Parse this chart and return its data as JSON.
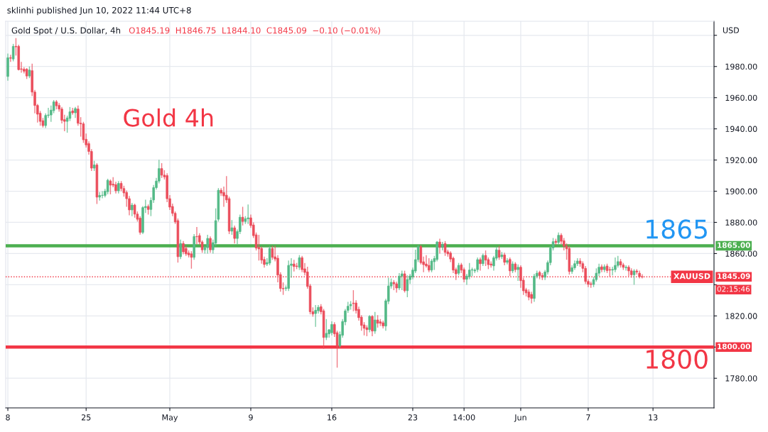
{
  "chart_data": {
    "type": "candlestick",
    "title": "Gold Spot / U.S. Dollar, 4h",
    "subtitle": "O1845.19  H1846.75  L1844.10  C1845.09  −0.10 (−0.01%)",
    "ylabel": "USD",
    "categories": [
      "8",
      null,
      null,
      null,
      null,
      null,
      null,
      null,
      null,
      null,
      null,
      null,
      null,
      null,
      null,
      null,
      null,
      null,
      null,
      null,
      null,
      null,
      null,
      null,
      null,
      null,
      null,
      null,
      null,
      "25",
      null,
      null,
      null,
      null,
      null,
      null,
      null,
      null,
      null,
      null,
      null,
      null,
      null,
      null,
      null,
      null,
      null,
      null,
      null,
      null,
      null,
      null,
      null,
      null,
      null,
      null,
      null,
      null,
      null,
      null,
      "May",
      null,
      null,
      null,
      null,
      null,
      null,
      null,
      null,
      null,
      null,
      null,
      null,
      null,
      null,
      null,
      null,
      null,
      null,
      null,
      null,
      null,
      null,
      null,
      null,
      null,
      null,
      null,
      null,
      null,
      "9",
      null,
      null,
      null,
      null,
      null,
      null,
      null,
      null,
      null,
      null,
      null,
      null,
      null,
      null,
      null,
      null,
      null,
      null,
      null,
      null,
      null,
      null,
      null,
      null,
      null,
      null,
      null,
      null,
      null,
      "16",
      null,
      null,
      null,
      null,
      null,
      null,
      null,
      null,
      null,
      null,
      null,
      null,
      null,
      null,
      null,
      null,
      null,
      null,
      null,
      null,
      null,
      null,
      null,
      null,
      null,
      null,
      null,
      null,
      null,
      "23",
      null,
      null,
      null,
      null,
      null,
      null,
      null,
      null,
      null,
      null,
      null,
      null,
      null,
      null,
      null,
      null,
      null,
      null,
      "14:00",
      null,
      null,
      null,
      null,
      null,
      null,
      null,
      null,
      null,
      null,
      null,
      null,
      null,
      null,
      null,
      null,
      null,
      null,
      null,
      null,
      "Jun",
      null,
      null,
      null,
      null,
      null,
      null,
      null,
      null,
      null,
      null,
      null,
      null,
      null,
      null,
      null,
      null,
      null,
      null,
      null,
      null,
      null,
      null,
      null,
      null,
      "7",
      null,
      null,
      null,
      null,
      null,
      null,
      null,
      null,
      null,
      null,
      null,
      null,
      null,
      null,
      null,
      null,
      null,
      null,
      null,
      null,
      null,
      null,
      null,
      "13",
      null,
      null,
      null,
      null,
      null,
      null,
      null,
      null,
      null,
      null,
      null,
      null,
      null,
      null,
      null,
      null,
      null,
      null,
      null,
      null,
      null,
      null
    ],
    "ohlc": [
      [
        1973.6,
        1988.3,
        1970.9,
        1985.6
      ],
      [
        1985.6,
        1987.5,
        1983.0,
        1985.3
      ],
      [
        1984.8,
        1994.5,
        1983.3,
        1992.9
      ],
      [
        1992.9,
        1998.2,
        1987.0,
        1992.6
      ],
      [
        1992.9,
        1994.0,
        1977.5,
        1978.0
      ],
      [
        1978.5,
        1983.0,
        1976.0,
        1978.2
      ],
      [
        1978.2,
        1979.5,
        1975.5,
        1977.0
      ],
      [
        1978.2,
        1979.0,
        1972.0,
        1973.9
      ],
      [
        1973.9,
        1980.0,
        1972.5,
        1977.7
      ],
      [
        1977.3,
        1981.8,
        1961.0,
        1963.6
      ],
      [
        1963.6,
        1965.0,
        1950.0,
        1955.0
      ],
      [
        1955.0,
        1956.0,
        1944.0,
        1949.4
      ],
      [
        1950.0,
        1951.5,
        1942.0,
        1944.8
      ],
      [
        1945.2,
        1947.0,
        1940.8,
        1942.1
      ],
      [
        1942.1,
        1950.0,
        1940.5,
        1948.6
      ],
      [
        1948.6,
        1953.5,
        1947.0,
        1948.9
      ],
      [
        1948.9,
        1955.0,
        1944.5,
        1952.0
      ],
      [
        1951.7,
        1958.5,
        1950.0,
        1957.3
      ],
      [
        1957.3,
        1958.5,
        1952.5,
        1954.8
      ],
      [
        1955.0,
        1956.5,
        1951.0,
        1952.7
      ],
      [
        1952.7,
        1954.0,
        1943.5,
        1945.5
      ],
      [
        1945.9,
        1949.0,
        1938.5,
        1944.8
      ],
      [
        1944.8,
        1948.5,
        1937.5,
        1947.0
      ],
      [
        1946.7,
        1954.0,
        1945.0,
        1950.9
      ],
      [
        1951.5,
        1953.5,
        1949.0,
        1950.3
      ],
      [
        1950.3,
        1954.0,
        1947.0,
        1953.0
      ],
      [
        1952.7,
        1955.0,
        1942.0,
        1943.6
      ],
      [
        1943.6,
        1947.5,
        1935.0,
        1943.2
      ],
      [
        1943.2,
        1944.5,
        1931.0,
        1933.0
      ],
      [
        1933.3,
        1937.0,
        1928.0,
        1929.7
      ],
      [
        1930.5,
        1932.0,
        1923.5,
        1925.5
      ],
      [
        1925.5,
        1927.0,
        1913.0,
        1914.8
      ],
      [
        1914.8,
        1919.5,
        1913.0,
        1916.8
      ],
      [
        1916.8,
        1918.0,
        1891.8,
        1896.2
      ],
      [
        1896.2,
        1899.5,
        1894.0,
        1897.3
      ],
      [
        1897.3,
        1900.0,
        1895.5,
        1897.4
      ],
      [
        1897.3,
        1901.5,
        1896.0,
        1900.0
      ],
      [
        1899.7,
        1908.0,
        1898.0,
        1907.0
      ],
      [
        1906.5,
        1907.5,
        1898.0,
        1903.9
      ],
      [
        1904.5,
        1909.0,
        1902.5,
        1903.9
      ],
      [
        1904.2,
        1906.0,
        1898.5,
        1900.3
      ],
      [
        1900.3,
        1906.5,
        1898.5,
        1905.0
      ],
      [
        1905.0,
        1906.5,
        1900.0,
        1901.7
      ],
      [
        1901.7,
        1903.5,
        1896.5,
        1898.9
      ],
      [
        1899.2,
        1900.5,
        1890.0,
        1895.2
      ],
      [
        1895.2,
        1897.0,
        1884.5,
        1888.0
      ],
      [
        1888.0,
        1892.5,
        1884.0,
        1891.1
      ],
      [
        1891.1,
        1892.0,
        1883.0,
        1885.3
      ],
      [
        1885.3,
        1887.0,
        1880.5,
        1882.0
      ],
      [
        1882.7,
        1884.0,
        1872.1,
        1873.6
      ],
      [
        1873.6,
        1890.5,
        1872.5,
        1889.5
      ],
      [
        1889.5,
        1894.5,
        1886.0,
        1890.2
      ],
      [
        1890.2,
        1891.5,
        1885.0,
        1888.3
      ],
      [
        1888.3,
        1896.0,
        1884.0,
        1894.1
      ],
      [
        1894.4,
        1904.0,
        1892.5,
        1902.3
      ],
      [
        1902.3,
        1908.5,
        1901.0,
        1906.5
      ],
      [
        1906.5,
        1920.2,
        1905.0,
        1914.5
      ],
      [
        1914.5,
        1918.0,
        1908.5,
        1910.3
      ],
      [
        1910.3,
        1913.5,
        1907.5,
        1909.2
      ],
      [
        1910.0,
        1911.5,
        1893.0,
        1895.2
      ],
      [
        1895.2,
        1897.5,
        1888.0,
        1889.8
      ],
      [
        1890.2,
        1892.0,
        1884.0,
        1885.8
      ],
      [
        1885.8,
        1887.0,
        1879.0,
        1880.3
      ],
      [
        1881.1,
        1882.5,
        1854.2,
        1858.0
      ],
      [
        1858.0,
        1869.0,
        1856.5,
        1866.4
      ],
      [
        1866.4,
        1868.0,
        1859.5,
        1861.1
      ],
      [
        1863.3,
        1865.0,
        1858.5,
        1859.8
      ],
      [
        1860.3,
        1862.0,
        1857.5,
        1859.2
      ],
      [
        1859.8,
        1861.5,
        1850.3,
        1857.6
      ],
      [
        1857.6,
        1872.5,
        1856.0,
        1870.9
      ],
      [
        1870.9,
        1877.0,
        1866.0,
        1870.8
      ],
      [
        1871.5,
        1873.0,
        1865.5,
        1867.4
      ],
      [
        1867.4,
        1868.5,
        1860.5,
        1862.4
      ],
      [
        1862.4,
        1865.0,
        1860.0,
        1863.8
      ],
      [
        1863.8,
        1872.0,
        1860.0,
        1869.7
      ],
      [
        1869.7,
        1871.0,
        1860.5,
        1862.4
      ],
      [
        1862.4,
        1869.0,
        1860.0,
        1867.0
      ],
      [
        1866.7,
        1889.0,
        1864.5,
        1881.1
      ],
      [
        1882.0,
        1902.0,
        1880.5,
        1900.6
      ],
      [
        1900.6,
        1902.0,
        1897.0,
        1898.8
      ],
      [
        1899.2,
        1903.0,
        1890.0,
        1897.0
      ],
      [
        1897.4,
        1909.7,
        1892.5,
        1894.4
      ],
      [
        1895.2,
        1896.5,
        1872.5,
        1874.4
      ],
      [
        1874.4,
        1881.5,
        1872.0,
        1876.5
      ],
      [
        1876.5,
        1878.0,
        1866.5,
        1869.7
      ],
      [
        1869.7,
        1875.5,
        1866.0,
        1874.1
      ],
      [
        1874.1,
        1885.0,
        1872.5,
        1883.3
      ],
      [
        1883.3,
        1890.0,
        1878.0,
        1880.6
      ],
      [
        1880.6,
        1884.0,
        1879.0,
        1882.3
      ],
      [
        1882.3,
        1891.5,
        1879.0,
        1882.9
      ],
      [
        1882.9,
        1885.0,
        1876.5,
        1878.0
      ],
      [
        1878.3,
        1880.0,
        1870.0,
        1871.5
      ],
      [
        1872.0,
        1873.5,
        1862.0,
        1863.5
      ],
      [
        1863.9,
        1872.0,
        1855.5,
        1863.0
      ],
      [
        1863.3,
        1864.5,
        1853.5,
        1855.8
      ],
      [
        1856.2,
        1858.0,
        1851.0,
        1853.0
      ],
      [
        1853.3,
        1857.0,
        1852.0,
        1854.2
      ],
      [
        1853.9,
        1865.0,
        1852.5,
        1863.3
      ],
      [
        1863.3,
        1865.0,
        1856.0,
        1857.6
      ],
      [
        1857.9,
        1865.0,
        1855.0,
        1856.5
      ],
      [
        1857.0,
        1859.0,
        1841.5,
        1846.2
      ],
      [
        1846.5,
        1848.0,
        1835.5,
        1837.6
      ],
      [
        1837.6,
        1841.5,
        1833.5,
        1837.4
      ],
      [
        1837.6,
        1839.5,
        1836.0,
        1838.0
      ],
      [
        1837.6,
        1855.5,
        1836.0,
        1852.4
      ],
      [
        1852.4,
        1857.0,
        1844.5,
        1853.3
      ],
      [
        1853.3,
        1856.0,
        1848.5,
        1851.7
      ],
      [
        1852.0,
        1854.0,
        1850.0,
        1851.7
      ],
      [
        1851.2,
        1859.0,
        1849.5,
        1857.3
      ],
      [
        1857.3,
        1858.5,
        1848.0,
        1849.7
      ],
      [
        1850.2,
        1854.0,
        1846.0,
        1847.9
      ],
      [
        1848.2,
        1851.5,
        1837.5,
        1838.9
      ],
      [
        1839.2,
        1840.5,
        1821.0,
        1822.7
      ],
      [
        1822.7,
        1825.5,
        1819.5,
        1821.2
      ],
      [
        1821.5,
        1827.0,
        1813.0,
        1823.6
      ],
      [
        1823.3,
        1827.0,
        1821.5,
        1825.5
      ],
      [
        1825.9,
        1827.5,
        1821.0,
        1822.7
      ],
      [
        1823.2,
        1824.5,
        1798.9,
        1806.2
      ],
      [
        1806.2,
        1818.0,
        1804.5,
        1808.8
      ],
      [
        1808.5,
        1811.5,
        1806.0,
        1811.1
      ],
      [
        1809.2,
        1816.5,
        1807.5,
        1814.5
      ],
      [
        1814.5,
        1816.0,
        1806.5,
        1808.5
      ],
      [
        1809.2,
        1810.5,
        1786.8,
        1800.9
      ],
      [
        1800.9,
        1810.0,
        1799.5,
        1808.0
      ],
      [
        1807.6,
        1818.0,
        1806.0,
        1816.4
      ],
      [
        1816.2,
        1824.5,
        1814.0,
        1823.2
      ],
      [
        1823.6,
        1829.0,
        1822.0,
        1826.2
      ],
      [
        1826.5,
        1829.5,
        1824.0,
        1827.4
      ],
      [
        1828.2,
        1836.5,
        1823.0,
        1827.9
      ],
      [
        1828.3,
        1830.0,
        1821.5,
        1823.5
      ],
      [
        1824.2,
        1826.0,
        1817.0,
        1818.9
      ],
      [
        1819.2,
        1820.5,
        1810.5,
        1813.9
      ],
      [
        1814.2,
        1816.0,
        1807.5,
        1812.1
      ],
      [
        1812.4,
        1814.0,
        1807.0,
        1811.2
      ],
      [
        1811.2,
        1820.5,
        1809.5,
        1819.7
      ],
      [
        1819.7,
        1820.5,
        1807.0,
        1810.3
      ],
      [
        1810.3,
        1822.5,
        1808.5,
        1817.4
      ],
      [
        1817.4,
        1820.5,
        1812.5,
        1815.3
      ],
      [
        1816.2,
        1818.0,
        1813.5,
        1815.3
      ],
      [
        1815.6,
        1817.0,
        1812.0,
        1813.6
      ],
      [
        1813.5,
        1831.0,
        1810.5,
        1829.7
      ],
      [
        1829.4,
        1844.5,
        1827.5,
        1839.2
      ],
      [
        1839.2,
        1844.0,
        1837.5,
        1841.5
      ],
      [
        1841.5,
        1843.0,
        1836.5,
        1840.6
      ],
      [
        1840.6,
        1842.0,
        1835.0,
        1837.9
      ],
      [
        1837.9,
        1847.5,
        1836.5,
        1845.5
      ],
      [
        1845.5,
        1849.0,
        1836.5,
        1847.0
      ],
      [
        1847.0,
        1849.0,
        1835.0,
        1836.2
      ],
      [
        1836.2,
        1846.0,
        1832.0,
        1843.3
      ],
      [
        1843.3,
        1847.0,
        1840.5,
        1845.6
      ],
      [
        1845.0,
        1851.0,
        1843.5,
        1849.4
      ],
      [
        1848.8,
        1862.5,
        1847.5,
        1856.1
      ],
      [
        1856.1,
        1865.5,
        1854.5,
        1864.4
      ],
      [
        1864.4,
        1865.5,
        1853.0,
        1854.2
      ],
      [
        1854.7,
        1858.0,
        1848.0,
        1852.9
      ],
      [
        1853.3,
        1859.0,
        1851.0,
        1852.1
      ],
      [
        1852.4,
        1857.0,
        1848.0,
        1849.4
      ],
      [
        1849.4,
        1856.5,
        1848.0,
        1855.2
      ],
      [
        1854.8,
        1858.5,
        1849.5,
        1856.8
      ],
      [
        1856.2,
        1868.0,
        1855.0,
        1867.4
      ],
      [
        1867.4,
        1869.5,
        1860.0,
        1863.9
      ],
      [
        1863.9,
        1867.5,
        1862.0,
        1865.9
      ],
      [
        1866.4,
        1868.0,
        1858.5,
        1860.8
      ],
      [
        1861.1,
        1862.5,
        1858.0,
        1859.8
      ],
      [
        1860.3,
        1861.5,
        1854.5,
        1856.5
      ],
      [
        1857.0,
        1858.0,
        1847.5,
        1849.4
      ],
      [
        1849.7,
        1851.0,
        1843.0,
        1847.0
      ],
      [
        1847.4,
        1854.0,
        1846.0,
        1852.4
      ],
      [
        1852.7,
        1854.0,
        1847.5,
        1849.4
      ],
      [
        1849.7,
        1851.0,
        1841.5,
        1843.5
      ],
      [
        1843.5,
        1847.0,
        1840.0,
        1845.6
      ],
      [
        1845.2,
        1854.0,
        1843.5,
        1849.4
      ],
      [
        1849.4,
        1851.0,
        1845.5,
        1849.7
      ],
      [
        1848.9,
        1850.5,
        1847.5,
        1849.4
      ],
      [
        1849.7,
        1857.5,
        1848.0,
        1856.1
      ],
      [
        1856.1,
        1857.5,
        1849.0,
        1853.5
      ],
      [
        1853.5,
        1860.0,
        1852.0,
        1858.8
      ],
      [
        1858.8,
        1862.0,
        1852.0,
        1855.8
      ],
      [
        1856.1,
        1857.5,
        1850.0,
        1852.9
      ],
      [
        1853.3,
        1855.0,
        1851.0,
        1852.6
      ],
      [
        1852.1,
        1858.5,
        1849.0,
        1857.3
      ],
      [
        1857.0,
        1864.0,
        1855.5,
        1862.4
      ],
      [
        1862.1,
        1865.0,
        1856.0,
        1857.7
      ],
      [
        1858.0,
        1861.0,
        1856.5,
        1859.1
      ],
      [
        1859.1,
        1860.5,
        1852.5,
        1854.4
      ],
      [
        1854.4,
        1857.0,
        1853.0,
        1855.5
      ],
      [
        1856.2,
        1857.5,
        1845.5,
        1848.9
      ],
      [
        1848.9,
        1855.0,
        1847.5,
        1853.3
      ],
      [
        1853.3,
        1854.5,
        1848.0,
        1849.7
      ],
      [
        1849.7,
        1853.0,
        1842.5,
        1851.2
      ],
      [
        1851.2,
        1852.5,
        1838.0,
        1842.6
      ],
      [
        1842.9,
        1844.5,
        1833.5,
        1836.1
      ],
      [
        1836.7,
        1838.0,
        1832.5,
        1834.8
      ],
      [
        1835.3,
        1837.0,
        1830.0,
        1832.0
      ],
      [
        1833.8,
        1835.5,
        1828.0,
        1831.2
      ],
      [
        1831.2,
        1847.0,
        1829.0,
        1845.5
      ],
      [
        1845.5,
        1849.0,
        1844.0,
        1847.4
      ],
      [
        1847.9,
        1849.0,
        1843.5,
        1845.9
      ],
      [
        1845.9,
        1847.5,
        1843.0,
        1844.8
      ],
      [
        1844.8,
        1849.5,
        1843.0,
        1848.2
      ],
      [
        1848.2,
        1855.5,
        1846.5,
        1854.2
      ],
      [
        1854.2,
        1865.0,
        1852.5,
        1863.6
      ],
      [
        1863.6,
        1870.0,
        1862.0,
        1867.6
      ],
      [
        1867.9,
        1869.5,
        1865.5,
        1867.1
      ],
      [
        1867.1,
        1873.5,
        1865.5,
        1871.7
      ],
      [
        1871.7,
        1873.0,
        1866.0,
        1867.9
      ],
      [
        1868.2,
        1870.0,
        1862.0,
        1864.8
      ],
      [
        1864.8,
        1866.5,
        1856.0,
        1863.0
      ],
      [
        1863.3,
        1865.0,
        1846.5,
        1848.5
      ],
      [
        1848.5,
        1852.5,
        1847.0,
        1850.9
      ],
      [
        1850.9,
        1855.5,
        1849.5,
        1853.5
      ],
      [
        1853.5,
        1857.0,
        1852.0,
        1855.2
      ],
      [
        1855.2,
        1857.0,
        1851.5,
        1853.5
      ],
      [
        1853.5,
        1855.0,
        1848.0,
        1850.5
      ],
      [
        1850.5,
        1852.0,
        1840.5,
        1842.1
      ],
      [
        1842.1,
        1843.5,
        1838.5,
        1840.3
      ],
      [
        1840.6,
        1842.0,
        1838.0,
        1840.2
      ],
      [
        1840.2,
        1845.0,
        1838.5,
        1843.3
      ],
      [
        1843.3,
        1850.5,
        1842.0,
        1847.4
      ],
      [
        1847.4,
        1853.5,
        1845.5,
        1851.2
      ],
      [
        1851.5,
        1853.0,
        1848.0,
        1849.7
      ],
      [
        1849.7,
        1853.0,
        1848.0,
        1851.5
      ],
      [
        1852.0,
        1853.5,
        1847.5,
        1849.1
      ],
      [
        1849.7,
        1851.5,
        1845.0,
        1849.4
      ],
      [
        1849.4,
        1851.5,
        1846.0,
        1849.8
      ],
      [
        1849.7,
        1857.5,
        1848.0,
        1852.4
      ],
      [
        1852.4,
        1858.5,
        1851.0,
        1854.8
      ],
      [
        1854.8,
        1856.5,
        1851.0,
        1852.7
      ],
      [
        1852.7,
        1854.0,
        1849.5,
        1851.2
      ],
      [
        1850.9,
        1852.5,
        1849.0,
        1851.2
      ],
      [
        1851.2,
        1852.5,
        1845.5,
        1848.9
      ],
      [
        1848.9,
        1850.5,
        1844.5,
        1846.4
      ],
      [
        1846.4,
        1850.0,
        1840.0,
        1848.8
      ],
      [
        1848.8,
        1850.0,
        1846.5,
        1848.2
      ],
      [
        1847.4,
        1849.0,
        1844.0,
        1845.2
      ],
      [
        1845.19,
        1846.75,
        1844.1,
        1845.09
      ],
      null,
      null,
      null,
      null,
      null,
      null,
      null,
      null,
      null,
      null,
      null,
      null,
      null,
      null,
      null,
      null,
      null,
      null,
      null,
      null,
      null,
      null,
      null,
      null,
      null,
      null
    ],
    "colors": [
      "#53b987",
      "#eb4d5c",
      "#53b987",
      "#eb4d5c",
      "#eb4d5c",
      "#eb4d5c",
      "#eb4d5c",
      "#eb4d5c",
      "#53b987",
      "#eb4d5c",
      "#eb4d5c",
      "#eb4d5c",
      "#eb4d5c",
      "#eb4d5c",
      "#53b987",
      "#53b987",
      "#53b987",
      "#53b987",
      "#eb4d5c",
      "#eb4d5c",
      "#eb4d5c",
      "#eb4d5c",
      "#53b987",
      "#53b987",
      "#eb4d5c",
      "#53b987",
      "#eb4d5c",
      "#eb4d5c",
      "#eb4d5c",
      "#eb4d5c",
      "#eb4d5c",
      "#eb4d5c",
      "#53b987",
      "#eb4d5c",
      "#53b987",
      "#53b987",
      "#53b987",
      "#53b987",
      "#eb4d5c",
      "#eb4d5c",
      "#eb4d5c",
      "#53b987",
      "#eb4d5c",
      "#eb4d5c",
      "#eb4d5c",
      "#eb4d5c",
      "#53b987",
      "#eb4d5c",
      "#eb4d5c",
      "#eb4d5c",
      "#53b987",
      "#53b987",
      "#eb4d5c",
      "#53b987",
      "#53b987",
      "#53b987",
      "#53b987",
      "#eb4d5c",
      "#eb4d5c",
      "#eb4d5c",
      "#eb4d5c",
      "#eb4d5c",
      "#eb4d5c",
      "#eb4d5c",
      "#53b987",
      "#eb4d5c",
      "#eb4d5c",
      "#eb4d5c",
      "#eb4d5c",
      "#53b987",
      "#eb4d5c",
      "#eb4d5c",
      "#eb4d5c",
      "#53b987",
      "#53b987",
      "#eb4d5c",
      "#53b987",
      "#53b987",
      "#53b987",
      "#eb4d5c",
      "#eb4d5c",
      "#eb4d5c",
      "#eb4d5c",
      "#53b987",
      "#eb4d5c",
      "#53b987",
      "#53b987",
      "#eb4d5c",
      "#53b987",
      "#53b987",
      "#eb4d5c",
      "#eb4d5c",
      "#eb4d5c",
      "#eb4d5c",
      "#eb4d5c",
      "#eb4d5c",
      "#53b987",
      "#53b987",
      "#eb4d5c",
      "#eb4d5c",
      "#eb4d5c",
      "#eb4d5c",
      "#eb4d5c",
      "#53b987",
      "#53b987",
      "#53b987",
      "#eb4d5c",
      "#eb4d5c",
      "#53b987",
      "#eb4d5c",
      "#eb4d5c",
      "#eb4d5c",
      "#eb4d5c",
      "#eb4d5c",
      "#53b987",
      "#53b987",
      "#eb4d5c",
      "#eb4d5c",
      "#53b987",
      "#53b987",
      "#53b987",
      "#eb4d5c",
      "#eb4d5c",
      "#53b987",
      "#53b987",
      "#53b987",
      "#53b987",
      "#53b987",
      "#eb4d5c",
      "#eb4d5c",
      "#eb4d5c",
      "#eb4d5c",
      "#eb4d5c",
      "#eb4d5c",
      "#53b987",
      "#eb4d5c",
      "#53b987",
      "#eb4d5c",
      "#eb4d5c",
      "#eb4d5c",
      "#53b987",
      "#53b987",
      "#53b987",
      "#eb4d5c",
      "#eb4d5c",
      "#53b987",
      "#53b987",
      "#eb4d5c",
      "#53b987",
      "#53b987",
      "#53b987",
      "#53b987",
      "#53b987",
      "#eb4d5c",
      "#eb4d5c",
      "#eb4d5c",
      "#eb4d5c",
      "#53b987",
      "#53b987",
      "#53b987",
      "#eb4d5c",
      "#53b987",
      "#eb4d5c",
      "#eb4d5c",
      "#eb4d5c",
      "#eb4d5c",
      "#eb4d5c",
      "#53b987",
      "#eb4d5c",
      "#eb4d5c",
      "#53b987",
      "#53b987",
      "#53b987",
      "#53b987",
      "#53b987",
      "#eb4d5c",
      "#53b987",
      "#eb4d5c",
      "#eb4d5c",
      "#eb4d5c",
      "#53b987",
      "#53b987",
      "#eb4d5c",
      "#53b987",
      "#eb4d5c",
      "#53b987",
      "#eb4d5c",
      "#53b987",
      "#eb4d5c",
      "#53b987",
      "#eb4d5c",
      "#eb4d5c",
      "#eb4d5c",
      "#eb4d5c",
      "#eb4d5c",
      "#53b987",
      "#53b987",
      "#eb4d5c",
      "#eb4d5c",
      "#53b987",
      "#53b987",
      "#53b987",
      "#53b987",
      "#eb4d5c",
      "#53b987",
      "#eb4d5c",
      "#eb4d5c",
      "#eb4d5c",
      "#eb4d5c",
      "#53b987",
      "#53b987",
      "#53b987",
      "#eb4d5c",
      "#eb4d5c",
      "#eb4d5c",
      "#eb4d5c",
      "#eb4d5c",
      "#53b987",
      "#53b987",
      "#53b987",
      "#eb4d5c",
      "#53b987",
      "#eb4d5c",
      "#eb4d5c",
      "#53b987",
      "#53b987",
      "#53b987",
      "#eb4d5c",
      "#eb4d5c",
      "#53b987",
      "#eb4d5c",
      "#eb4d5c",
      "#53b987",
      "#eb4d5c",
      "#eb4d5c",
      "#eb4d5c",
      null,
      null,
      null,
      null,
      null,
      null,
      null,
      null,
      null,
      null,
      null,
      null,
      null,
      null,
      null,
      null,
      null,
      null,
      null,
      null,
      null,
      null,
      null,
      null,
      null,
      null
    ],
    "ylim": [
      1761,
      2009
    ],
    "yticks": [
      {
        "value": 1780,
        "label": "1780.00"
      },
      {
        "value": 1800,
        "label": null
      },
      {
        "value": 1820,
        "label": "1820.00"
      },
      {
        "value": 1840,
        "label": null
      },
      {
        "value": 1860,
        "label": "1860.00"
      },
      {
        "value": 1880,
        "label": "1880.00"
      },
      {
        "value": 1900,
        "label": "1900.00"
      },
      {
        "value": 1920,
        "label": "1920.00"
      },
      {
        "value": 1940,
        "label": "1940.00"
      },
      {
        "value": 1960,
        "label": "1960.00"
      },
      {
        "value": 1980,
        "label": "1980.00"
      },
      {
        "value": 2000,
        "label": null
      }
    ],
    "grid": true,
    "ref_lines": [
      {
        "axis": "y",
        "value": 1865,
        "label": "1865.00",
        "color": "#4caf50",
        "line_style": "solid"
      },
      {
        "axis": "y",
        "value": 1800,
        "label": "1800.00",
        "color": "#f23645",
        "line_style": "solid"
      },
      {
        "axis": "y",
        "value": 1845.09,
        "label": "1845.09",
        "color": "#f23645",
        "line_style": "dotted"
      }
    ],
    "annotations": [
      "sklinhi published Jun 10, 2022 11:44 UTC+8",
      "Gold 4h",
      {
        "text": "1865",
        "y": 1865
      },
      {
        "text": "1800",
        "y": 1800
      },
      {
        "text": "XAUUSD",
        "y": 1845.09
      },
      "02:15:46"
    ]
  }
}
